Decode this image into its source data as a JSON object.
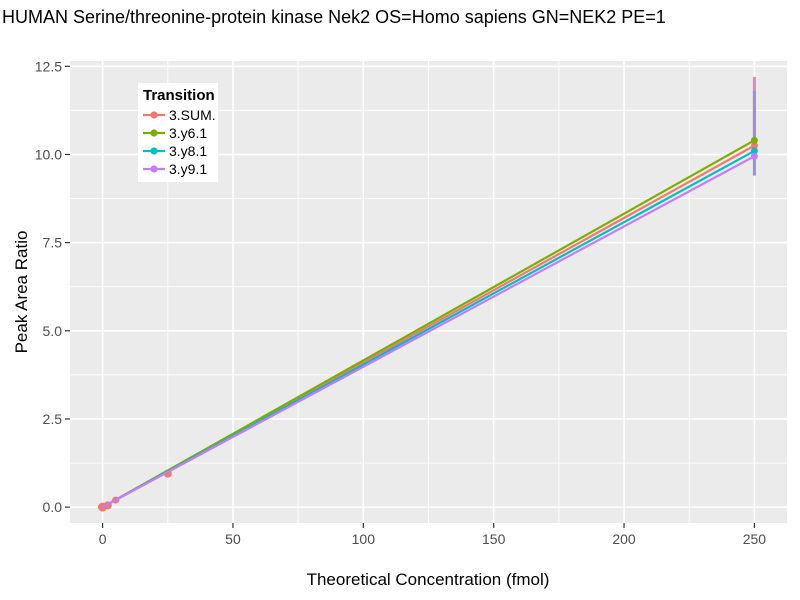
{
  "chart_data": {
    "type": "line",
    "title": "HUMAN Serine/threonine-protein kinase Nek2 OS=Homo sapiens GN=NEK2 PE=1",
    "xlabel": "Theoretical Concentration (fmol)",
    "ylabel": "Peak Area Ratio",
    "xlim": [
      -12.5,
      262.5
    ],
    "ylim": [
      -0.45,
      12.65
    ],
    "x_ticks": [
      "0",
      "50",
      "100",
      "150",
      "200",
      "250"
    ],
    "y_ticks": [
      "0.0",
      "2.5",
      "5.0",
      "7.5",
      "10.0",
      "12.5"
    ],
    "grid": true,
    "panel_bg": "#EBEBEB",
    "grid_color": "#FFFFFF",
    "tick_color": "#333333",
    "tick_label_color": "#4D4D4D",
    "legend": {
      "title": "Transition",
      "position": "top-left-inside",
      "bg": "#FFFFFF"
    },
    "series": [
      {
        "name": "3.SUM.",
        "color": "#F8766D",
        "line": {
          "x0": 0,
          "y0": 0.0,
          "x1": 250,
          "y1": 10.25
        },
        "points": [
          [
            0,
            0.0,
            4.5
          ],
          [
            2,
            0.05,
            4
          ],
          [
            5,
            0.2,
            3.5
          ],
          [
            25,
            0.95,
            4
          ],
          [
            250,
            10.25,
            3.5
          ]
        ],
        "errorbar": {
          "x": 250,
          "ymin": 10.0,
          "ymax": 12.2,
          "color": "#D98BBC"
        }
      },
      {
        "name": "3.y6.1",
        "color": "#7CAE00",
        "line": {
          "x0": 0,
          "y0": 0.0,
          "x1": 250,
          "y1": 10.4
        },
        "points": [
          [
            250,
            10.4,
            3.5
          ]
        ]
      },
      {
        "name": "3.y8.1",
        "color": "#00BFC4",
        "line": {
          "x0": 0,
          "y0": 0.0,
          "x1": 250,
          "y1": 10.1
        },
        "points": [
          [
            250,
            10.1,
            3.5
          ]
        ]
      },
      {
        "name": "3.y9.1",
        "color": "#C77CFF",
        "line": {
          "x0": 0,
          "y0": 0.0,
          "x1": 250,
          "y1": 9.95
        },
        "points": [
          [
            250,
            9.95,
            3.5
          ]
        ],
        "errorbar": {
          "x": 250,
          "ymin": 9.4,
          "ymax": 11.8,
          "color": "#9C8FE0"
        }
      }
    ]
  }
}
